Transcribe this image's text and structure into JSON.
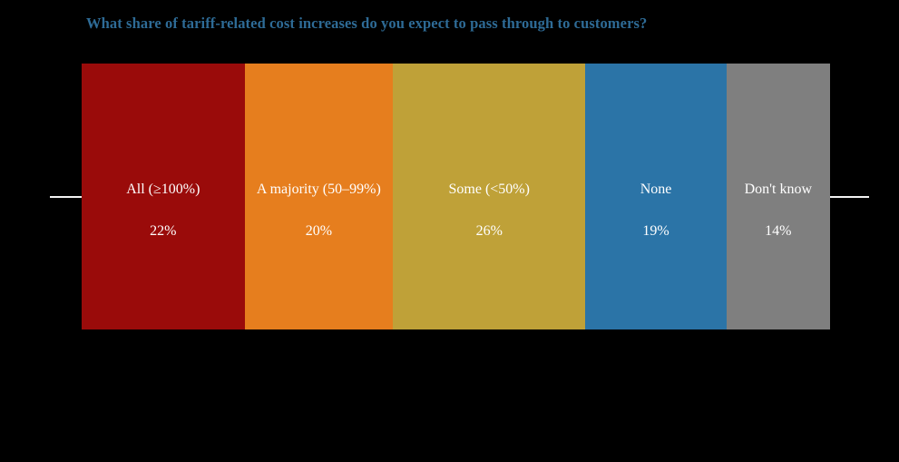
{
  "title": {
    "text": "What share of tariff-related cost increases do you expect to pass through to customers?",
    "color": "#2e6b96"
  },
  "chart_data": {
    "type": "bar",
    "variant": "proportional-width-segment-strip",
    "title": "What share of tariff-related cost increases do you expect to pass through to customers?",
    "categories": [
      "All (≥100%)",
      "A majority (50–99%)",
      "Some (<50%)",
      "None",
      "Don't know"
    ],
    "values": [
      22,
      20,
      26,
      19,
      14
    ],
    "value_labels": [
      "22%",
      "20%",
      "26%",
      "19%",
      "14%"
    ],
    "segment_colors": [
      "#9a0b0a",
      "#e67e1e",
      "#bfa138",
      "#2b74a7",
      "#7f7f7f"
    ],
    "label_color": "#ffffff",
    "background_color": "#000000",
    "axis_line_color": "#f2f2f2",
    "legend": "none",
    "grid": false,
    "notes": "Segment widths proportional to values; category label above percentage label inside each segment; short white axis stubs flank the strip at mid-height."
  }
}
